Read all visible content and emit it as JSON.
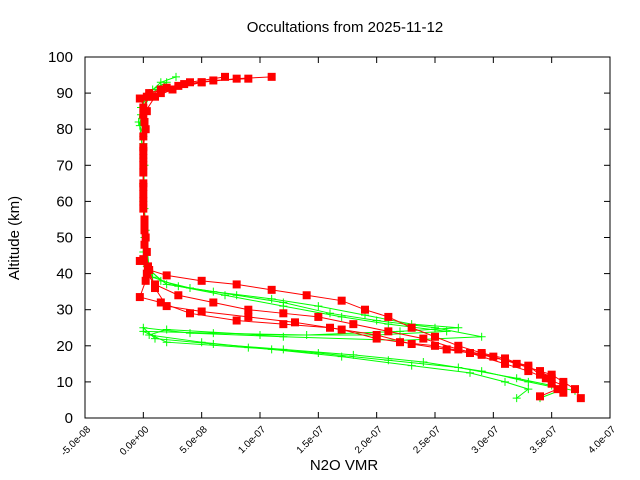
{
  "chart_data": {
    "type": "line",
    "title": "Occultations from 2025-11-12",
    "xlabel": "N2O VMR",
    "ylabel": "Altitude (km)",
    "xlim": [
      -5e-08,
      4e-07
    ],
    "ylim": [
      0,
      100
    ],
    "xticks": [
      "-5.0e-08",
      "0.0e+00",
      "5.0e-08",
      "1.0e-07",
      "1.5e-07",
      "2.0e-07",
      "2.5e-07",
      "3.0e-07",
      "3.5e-07",
      "4.0e-07"
    ],
    "xtick_values": [
      -5e-08,
      0,
      5e-08,
      1e-07,
      1.5e-07,
      2e-07,
      2.5e-07,
      3e-07,
      3.5e-07,
      4e-07
    ],
    "yticks": [
      "0",
      "10",
      "20",
      "30",
      "40",
      "50",
      "60",
      "70",
      "80",
      "90",
      "100"
    ],
    "ytick_values": [
      0,
      10,
      20,
      30,
      40,
      50,
      60,
      70,
      80,
      90,
      100
    ],
    "grid": false,
    "series": [
      {
        "color": "#00ff00",
        "marker": "plus",
        "points": [
          [
            2.8e-08,
            94.5
          ],
          [
            1.5e-08,
            93
          ],
          [
            5e-09,
            90
          ],
          [
            -2e-09,
            86
          ],
          [
            -4e-09,
            82
          ],
          [
            0,
            78
          ],
          [
            1e-09,
            70
          ],
          [
            0,
            60
          ],
          [
            1e-09,
            50
          ],
          [
            3e-09,
            42
          ],
          [
            1.5e-08,
            38
          ],
          [
            4e-08,
            36
          ],
          [
            8e-08,
            34
          ],
          [
            1.2e-07,
            32
          ],
          [
            1.6e-07,
            29
          ],
          [
            2e-07,
            27
          ],
          [
            2.5e-07,
            25
          ],
          [
            2.9e-07,
            22.5
          ],
          [
            2.2e-07,
            21.5
          ],
          [
            1.2e-07,
            22.5
          ],
          [
            4e-08,
            23.5
          ],
          [
            0,
            25
          ],
          [
            1e-08,
            22
          ],
          [
            6e-08,
            20.5
          ],
          [
            1.2e-07,
            19
          ],
          [
            1.8e-07,
            17.5
          ],
          [
            2.4e-07,
            15.5
          ],
          [
            2.9e-07,
            13
          ],
          [
            3.3e-07,
            10
          ],
          [
            3.6e-07,
            8
          ],
          [
            3.4e-07,
            5.5
          ]
        ]
      },
      {
        "color": "#00ff00",
        "marker": "plus",
        "points": [
          [
            2e-08,
            93
          ],
          [
            8e-09,
            91
          ],
          [
            -2e-09,
            84
          ],
          [
            0,
            76
          ],
          [
            0,
            65
          ],
          [
            2e-09,
            52
          ],
          [
            5e-09,
            41
          ],
          [
            2e-08,
            37
          ],
          [
            6e-08,
            35
          ],
          [
            1.1e-07,
            33
          ],
          [
            1.5e-07,
            31
          ],
          [
            1.9e-07,
            28.5
          ],
          [
            2.3e-07,
            26
          ],
          [
            2.7e-07,
            25
          ],
          [
            2.2e-07,
            24
          ],
          [
            1.4e-07,
            23
          ],
          [
            6e-08,
            23.5
          ],
          [
            0,
            24
          ],
          [
            2e-08,
            21
          ],
          [
            9e-08,
            19.5
          ],
          [
            1.5e-07,
            18
          ],
          [
            2.1e-07,
            16
          ],
          [
            2.7e-07,
            14
          ],
          [
            3.2e-07,
            11
          ],
          [
            3.5e-07,
            9
          ],
          [
            3.7e-07,
            7.5
          ]
        ]
      },
      {
        "color": "#00ff00",
        "marker": "plus",
        "points": [
          [
            1.5e-08,
            92
          ],
          [
            0,
            88
          ],
          [
            -3e-09,
            81
          ],
          [
            0,
            72
          ],
          [
            1e-09,
            58
          ],
          [
            0,
            46
          ],
          [
            8e-09,
            39
          ],
          [
            3e-08,
            36.5
          ],
          [
            7e-08,
            34
          ],
          [
            1.2e-07,
            31
          ],
          [
            1.7e-07,
            28
          ],
          [
            2.1e-07,
            26
          ],
          [
            2.6e-07,
            24
          ],
          [
            2e-07,
            23
          ],
          [
            1e-07,
            23
          ],
          [
            2e-08,
            24.5
          ],
          [
            5e-09,
            23
          ],
          [
            5e-08,
            21
          ],
          [
            1.1e-07,
            19
          ],
          [
            1.7e-07,
            17
          ],
          [
            2.3e-07,
            14.5
          ],
          [
            2.8e-07,
            12.5
          ],
          [
            3.1e-07,
            10
          ],
          [
            3.3e-07,
            8
          ],
          [
            3.2e-07,
            5.5
          ]
        ]
      },
      {
        "color": "#ff0000",
        "marker": "square",
        "points": [
          [
            1.1e-07,
            94.5
          ],
          [
            8e-08,
            94
          ],
          [
            5e-08,
            93
          ],
          [
            3e-08,
            92
          ],
          [
            1.5e-08,
            90
          ],
          [
            5e-09,
            89
          ],
          [
            -3e-09,
            88.5
          ],
          [
            3e-09,
            85
          ],
          [
            2e-09,
            80
          ],
          [
            0,
            75
          ],
          [
            0,
            70
          ],
          [
            0,
            65
          ],
          [
            0,
            60
          ],
          [
            1e-09,
            55
          ],
          [
            2e-09,
            50
          ],
          [
            3e-09,
            46
          ],
          [
            -3e-09,
            43.5
          ],
          [
            5e-09,
            41
          ],
          [
            2e-08,
            39.5
          ],
          [
            5e-08,
            38
          ],
          [
            8e-08,
            37
          ],
          [
            1.1e-07,
            35.5
          ],
          [
            1.4e-07,
            34
          ],
          [
            1.7e-07,
            32.5
          ],
          [
            1.9e-07,
            30
          ],
          [
            2.1e-07,
            28
          ],
          [
            2.3e-07,
            25
          ],
          [
            2.5e-07,
            22.5
          ],
          [
            2.7e-07,
            20
          ],
          [
            2.9e-07,
            18
          ],
          [
            3.1e-07,
            16.5
          ],
          [
            3.3e-07,
            14
          ],
          [
            3.5e-07,
            12
          ],
          [
            3.6e-07,
            10
          ],
          [
            3.7e-07,
            8
          ],
          [
            3.75e-07,
            5.5
          ]
        ]
      },
      {
        "color": "#ff0000",
        "marker": "square",
        "points": [
          [
            7e-08,
            94.5
          ],
          [
            4e-08,
            93
          ],
          [
            2e-08,
            91.5
          ],
          [
            5e-09,
            90
          ],
          [
            0,
            86
          ],
          [
            0,
            78
          ],
          [
            0,
            68
          ],
          [
            0,
            58
          ],
          [
            1e-09,
            48
          ],
          [
            3e-09,
            40
          ],
          [
            1e-08,
            37
          ],
          [
            3e-08,
            34
          ],
          [
            6e-08,
            32
          ],
          [
            9e-08,
            30
          ],
          [
            1.2e-07,
            29
          ],
          [
            1.5e-07,
            28
          ],
          [
            1.8e-07,
            26
          ],
          [
            2.1e-07,
            24
          ],
          [
            2.4e-07,
            22
          ],
          [
            2.7e-07,
            19
          ],
          [
            3e-07,
            17
          ],
          [
            3.2e-07,
            15
          ],
          [
            3.4e-07,
            13
          ],
          [
            3.5e-07,
            11
          ],
          [
            3.55e-07,
            8
          ],
          [
            3.4e-07,
            6
          ]
        ]
      },
      {
        "color": "#ff0000",
        "marker": "square",
        "points": [
          [
            5e-08,
            93
          ],
          [
            2.5e-08,
            91
          ],
          [
            1e-08,
            89
          ],
          [
            0,
            84
          ],
          [
            0,
            72
          ],
          [
            0,
            62
          ],
          [
            1e-09,
            52
          ],
          [
            0,
            44
          ],
          [
            2e-09,
            38
          ],
          [
            -3e-09,
            33.5
          ],
          [
            1.5e-08,
            32
          ],
          [
            4e-08,
            29
          ],
          [
            8e-08,
            27
          ],
          [
            1.2e-07,
            26
          ],
          [
            1.6e-07,
            25
          ],
          [
            2e-07,
            23
          ],
          [
            2.3e-07,
            20.5
          ],
          [
            2.6e-07,
            19
          ],
          [
            2.9e-07,
            17.5
          ],
          [
            3.1e-07,
            16
          ],
          [
            3.3e-07,
            14.5
          ],
          [
            3.4e-07,
            12
          ],
          [
            3.5e-07,
            9.5
          ],
          [
            3.6e-07,
            7
          ]
        ]
      },
      {
        "color": "#ff0000",
        "marker": "square",
        "points": [
          [
            9e-08,
            94
          ],
          [
            6e-08,
            93.5
          ],
          [
            3.5e-08,
            92.5
          ],
          [
            1.5e-08,
            91
          ],
          [
            3e-09,
            89
          ],
          [
            1e-09,
            82
          ],
          [
            0,
            74
          ],
          [
            0,
            64
          ],
          [
            1e-09,
            54
          ],
          [
            4e-09,
            42
          ],
          [
            1e-08,
            36
          ],
          [
            2e-08,
            31
          ],
          [
            5e-08,
            29.5
          ],
          [
            9e-08,
            28
          ],
          [
            1.3e-07,
            26.5
          ],
          [
            1.7e-07,
            24.5
          ],
          [
            2e-07,
            22
          ],
          [
            2.2e-07,
            21
          ],
          [
            2.5e-07,
            20
          ],
          [
            2.8e-07,
            18
          ],
          [
            3.1e-07,
            15
          ],
          [
            3.3e-07,
            13
          ],
          [
            3.45e-07,
            11
          ],
          [
            3.6e-07,
            9
          ]
        ]
      }
    ]
  }
}
